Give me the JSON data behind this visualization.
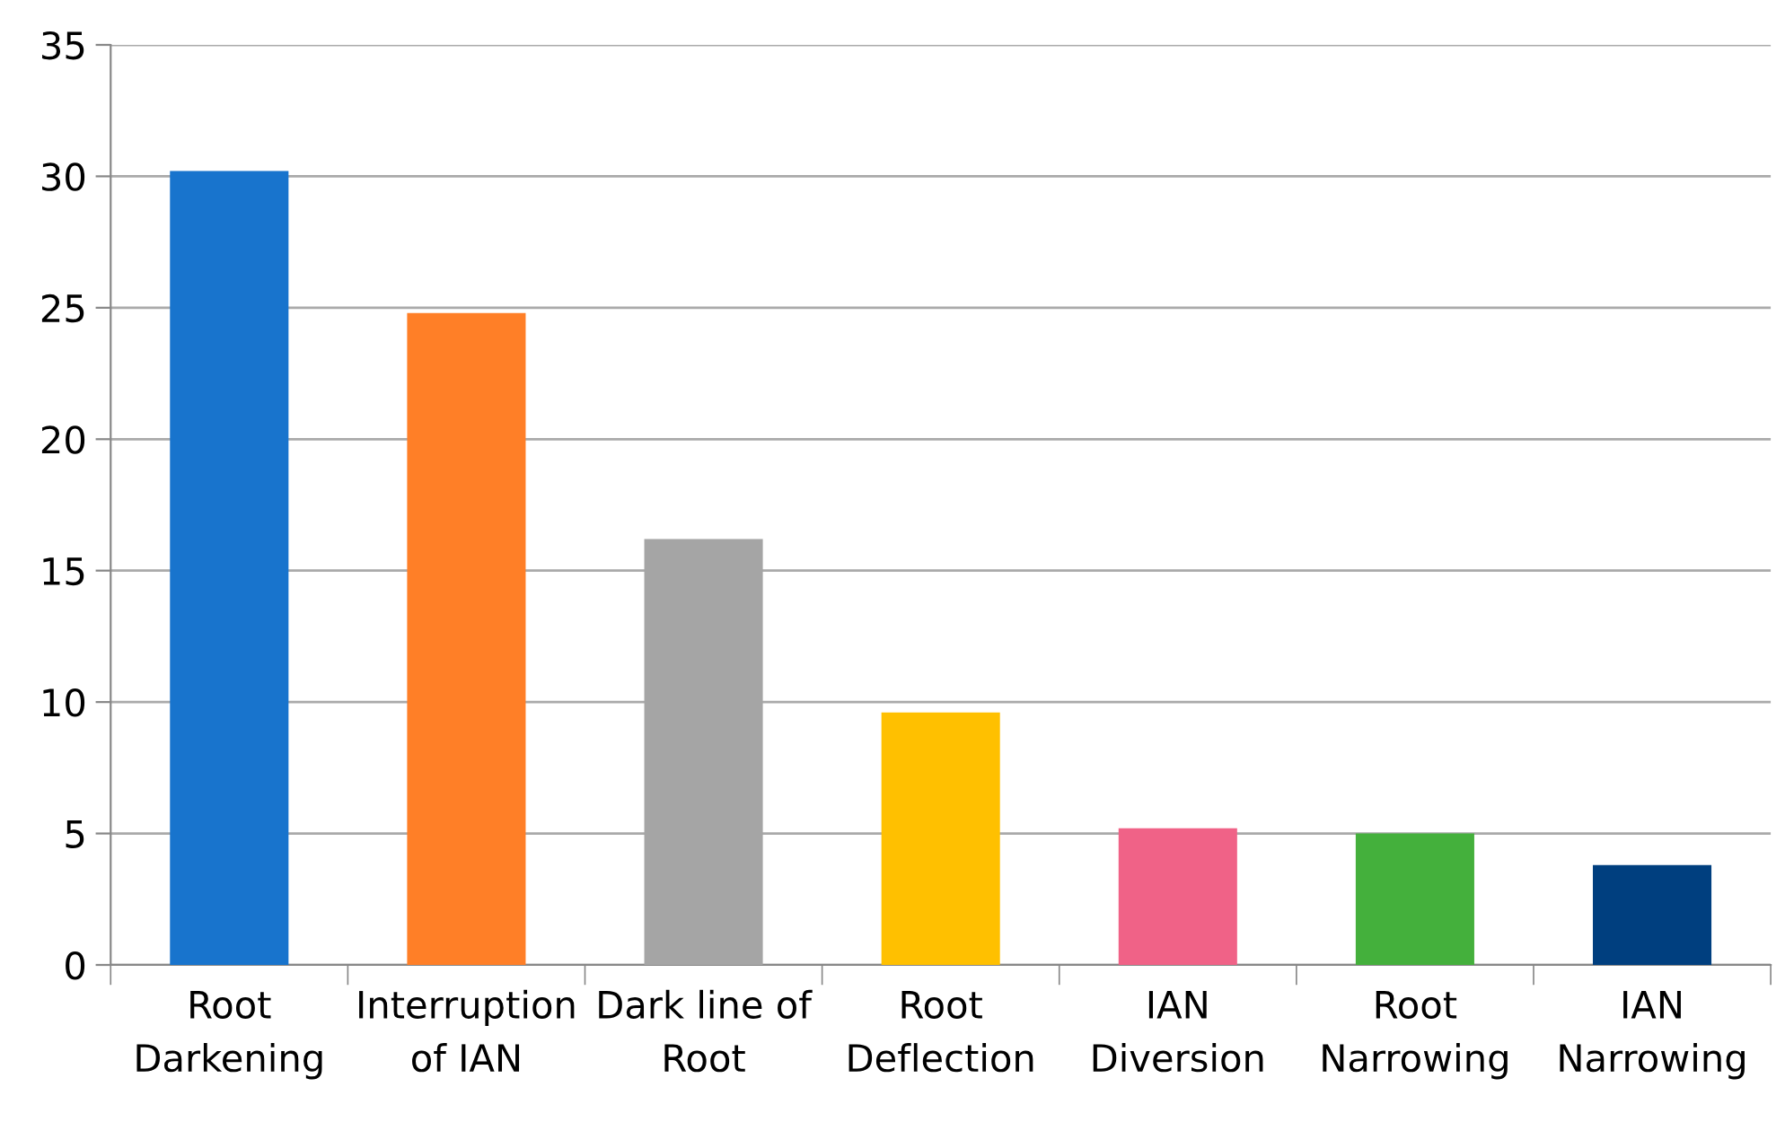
{
  "chart_data": {
    "type": "bar",
    "categories": [
      "Root\nDarkening",
      "Interruption\nof IAN",
      "Dark line of\nRoot",
      "Root\nDeflection",
      "IAN\nDiversion",
      "Root\nNarrowing",
      "IAN\nNarrowing"
    ],
    "values": [
      30.2,
      24.8,
      16.2,
      9.6,
      5.2,
      5.0,
      3.8
    ],
    "colors": [
      "#1874cd",
      "#ff7f27",
      "#a5a5a5",
      "#ffc000",
      "#f06287",
      "#44b03c",
      "#003f7f"
    ],
    "ylim": [
      0,
      35
    ],
    "yticks": [
      0,
      5,
      10,
      15,
      20,
      25,
      30,
      35
    ],
    "grid": "y"
  }
}
